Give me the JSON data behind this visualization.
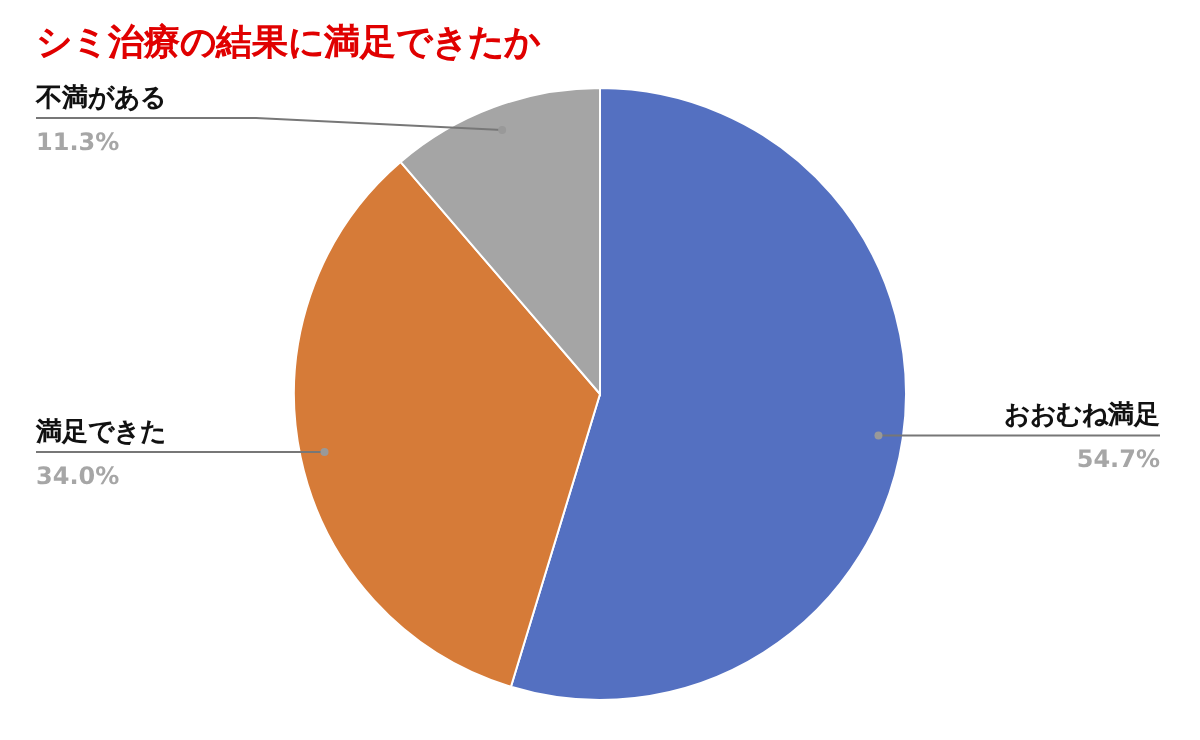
{
  "chart_data": {
    "type": "pie",
    "title": "シミ治療の結果に満足できたか",
    "categories": [
      "おおむね満足",
      "満足できた",
      "不満がある"
    ],
    "values": [
      54.7,
      34.0,
      11.3
    ],
    "colors": [
      "#5470c1",
      "#d67b38",
      "#a5a5a5"
    ],
    "value_labels": [
      "54.7%",
      "34.0%",
      "11.3%"
    ]
  }
}
